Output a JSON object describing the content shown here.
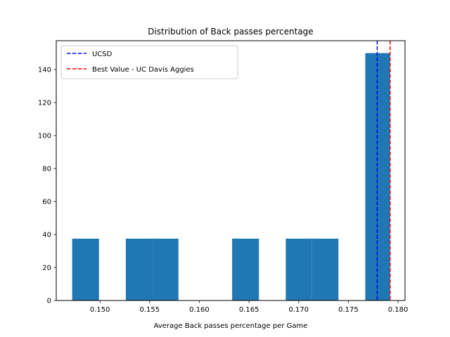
{
  "chart_data": {
    "type": "bar",
    "title": "Distribution of Back passes percentage",
    "xlabel": "Average Back passes percentage per Game",
    "ylabel": "",
    "xlim": [
      0.1456,
      0.1807
    ],
    "ylim": [
      0,
      157.5
    ],
    "x_ticks": [
      {
        "value": 0.15,
        "label": "0.150"
      },
      {
        "value": 0.155,
        "label": "0.155"
      },
      {
        "value": 0.16,
        "label": "0.160"
      },
      {
        "value": 0.165,
        "label": "0.165"
      },
      {
        "value": 0.17,
        "label": "0.170"
      },
      {
        "value": 0.175,
        "label": "0.175"
      },
      {
        "value": 0.18,
        "label": "0.180"
      }
    ],
    "y_ticks": [
      {
        "value": 0,
        "label": "0"
      },
      {
        "value": 20,
        "label": "20"
      },
      {
        "value": 40,
        "label": "40"
      },
      {
        "value": 60,
        "label": "60"
      },
      {
        "value": 80,
        "label": "80"
      },
      {
        "value": 100,
        "label": "100"
      },
      {
        "value": 120,
        "label": "120"
      },
      {
        "value": 140,
        "label": "140"
      }
    ],
    "bins": [
      {
        "x0": 0.1472,
        "x1": 0.1499,
        "count": 37.5
      },
      {
        "x0": 0.1526,
        "x1": 0.1553,
        "count": 37.5
      },
      {
        "x0": 0.1553,
        "x1": 0.1579,
        "count": 37.5
      },
      {
        "x0": 0.1633,
        "x1": 0.166,
        "count": 37.5
      },
      {
        "x0": 0.1687,
        "x1": 0.1713,
        "count": 37.5
      },
      {
        "x0": 0.1713,
        "x1": 0.174,
        "count": 37.5
      },
      {
        "x0": 0.1767,
        "x1": 0.1792,
        "count": 150
      }
    ],
    "bar_color": "#1f77b4",
    "reference_lines": [
      {
        "name": "UCSD",
        "x": 0.1779,
        "color": "#0000ff",
        "style": "dashed"
      },
      {
        "name": "Best Value - UC Davis Aggies",
        "x": 0.1792,
        "color": "#ff0000",
        "style": "dashed"
      }
    ],
    "legend_position": "upper-left",
    "grid": false
  }
}
